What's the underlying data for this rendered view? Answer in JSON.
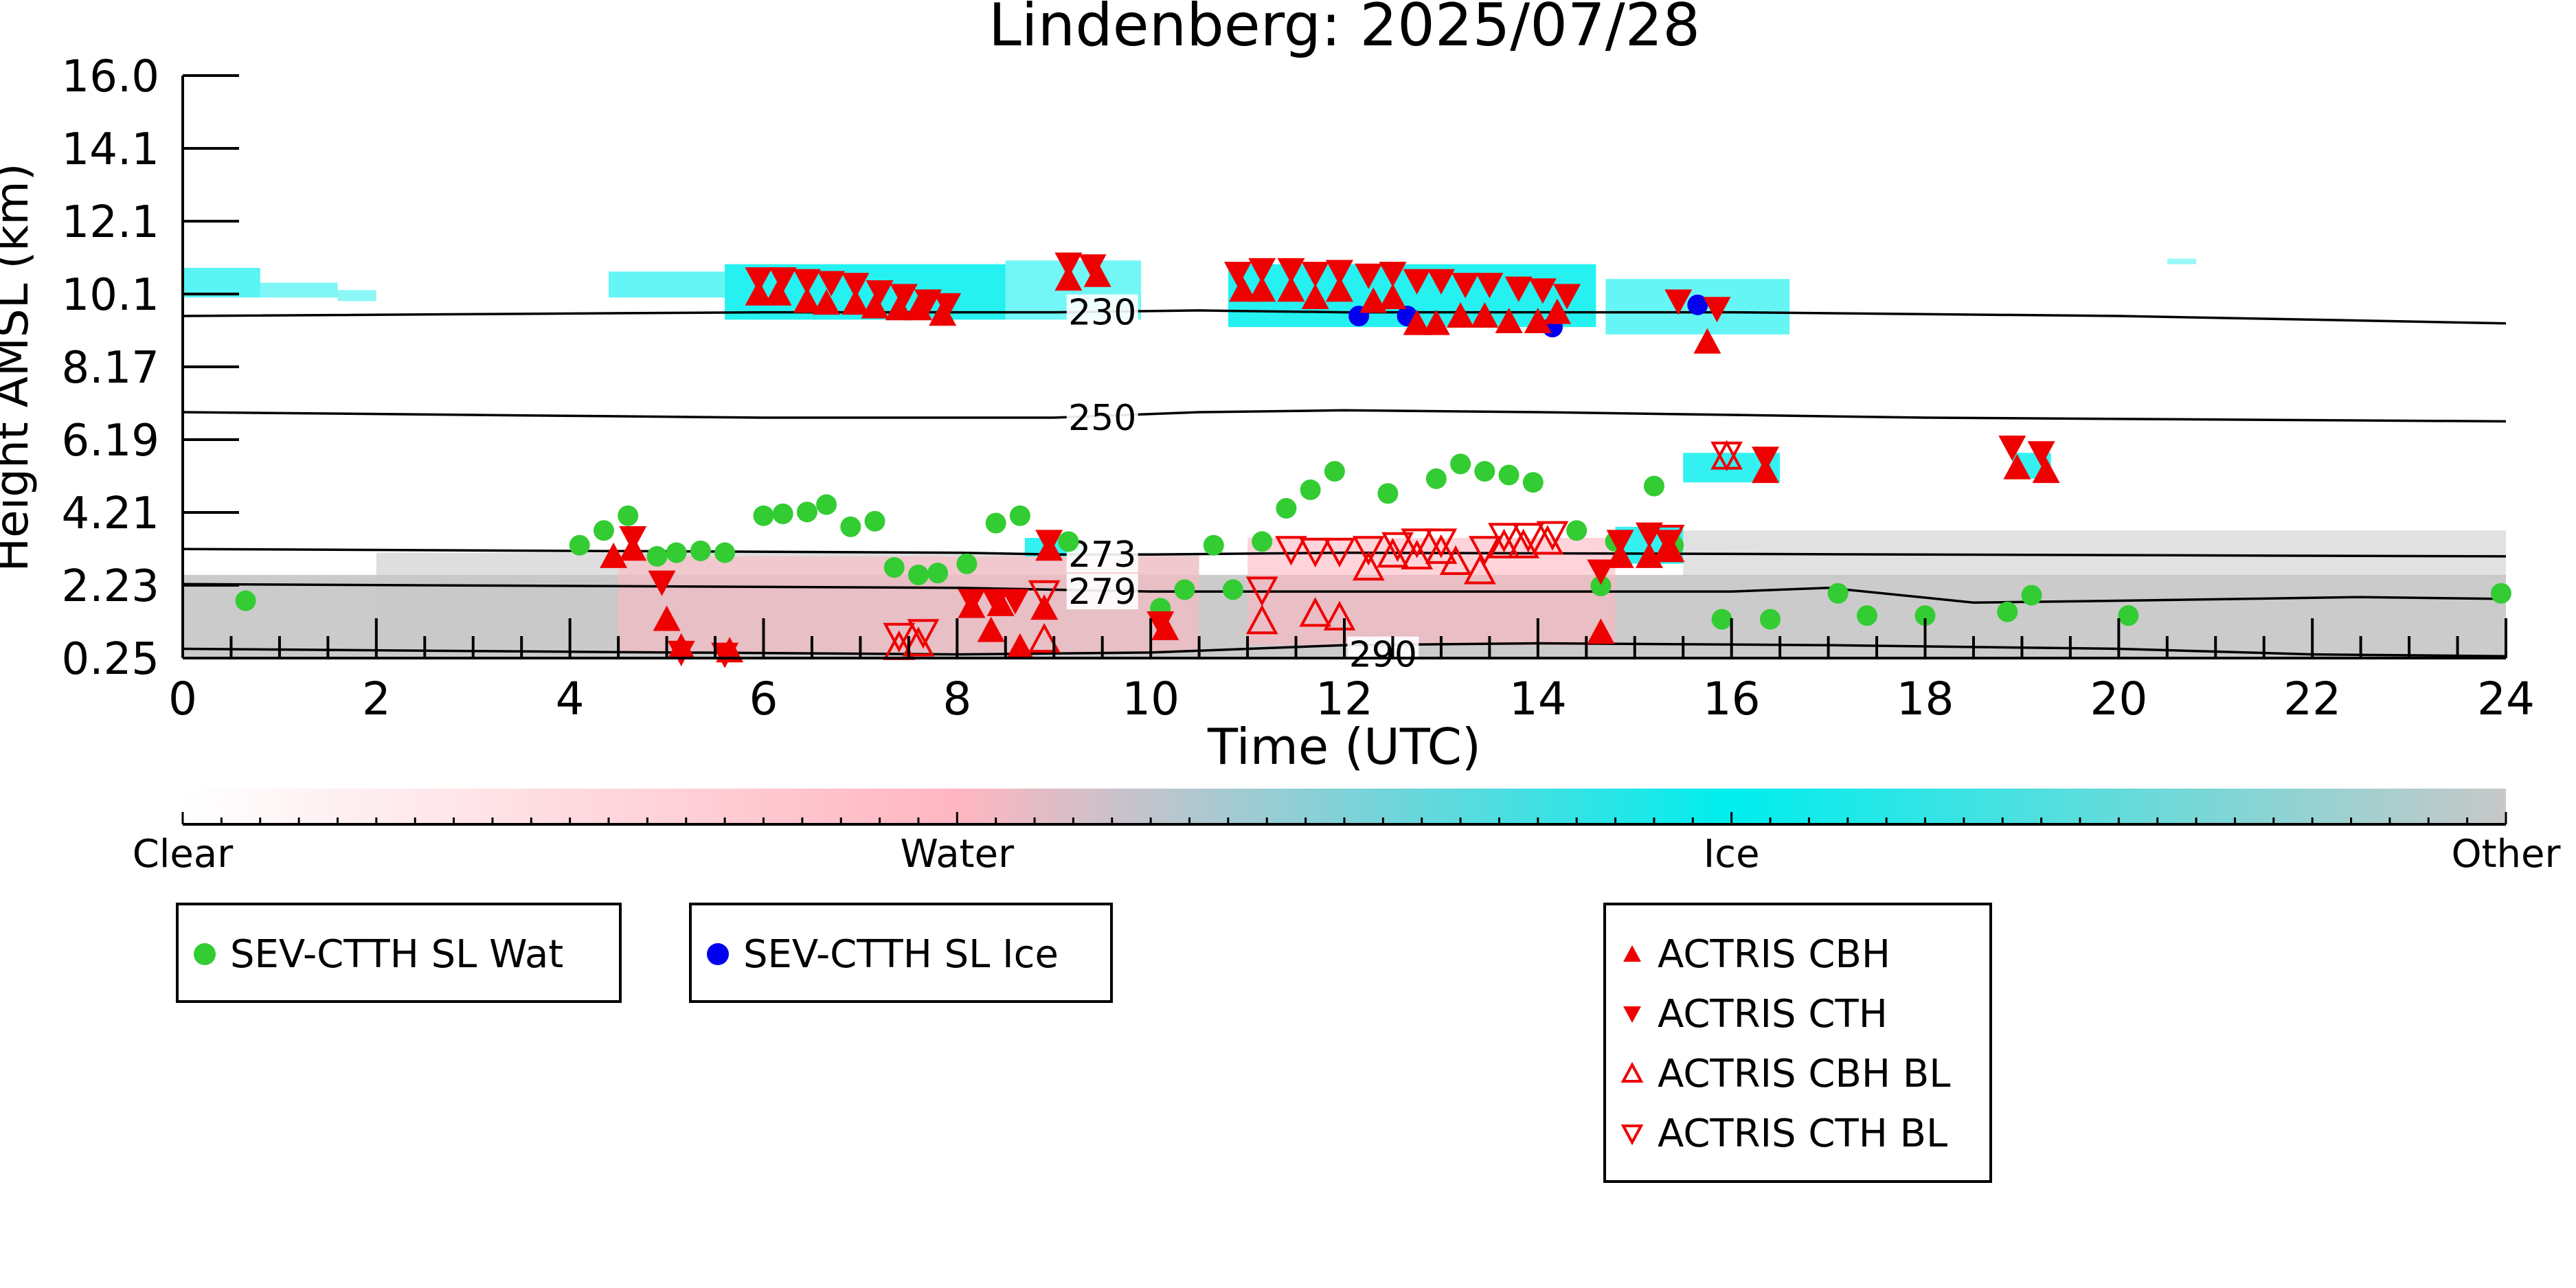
{
  "colors": {
    "background": "#ffffff",
    "axis": "#000000",
    "water_marker": "#33cc33",
    "ice_marker": "#0000ee",
    "actris_marker": "#ee0000",
    "ice_cloud": "#00eeee",
    "other_cloud": "#c8c8c8",
    "water_cloud": "#ffb6c1",
    "contour": "#000000"
  },
  "chart_data": {
    "type": "scatter",
    "title": "Lindenberg: 2025/07/28",
    "xlabel": "Time (UTC)",
    "ylabel": "Height AMSL (km)",
    "xlim": [
      0,
      24
    ],
    "ylim": [
      0.25,
      16.0
    ],
    "x_ticks": [
      "0",
      "2",
      "4",
      "6",
      "8",
      "10",
      "12",
      "14",
      "16",
      "18",
      "20",
      "22",
      "24"
    ],
    "y_ticks": [
      "0.25",
      "2.23",
      "4.21",
      "6.19",
      "8.17",
      "10.1",
      "12.1",
      "14.1",
      "16.0"
    ],
    "grid": false,
    "colorbar": {
      "categories": [
        "Clear",
        "Water",
        "Ice",
        "Other"
      ],
      "colors": [
        "#ffffff",
        "#ffb6c1",
        "#00eeee",
        "#c8c8c8"
      ]
    },
    "series": [
      {
        "name": "SEV-CTTH SL Wat",
        "marker": "filled-circle",
        "points": [
          [
            0.65,
            1.8
          ],
          [
            4.1,
            3.3
          ],
          [
            4.35,
            3.7
          ],
          [
            4.6,
            4.1
          ],
          [
            4.9,
            3.0
          ],
          [
            5.1,
            3.1
          ],
          [
            5.35,
            3.15
          ],
          [
            5.6,
            3.1
          ],
          [
            6.0,
            4.1
          ],
          [
            6.2,
            4.15
          ],
          [
            6.45,
            4.2
          ],
          [
            6.65,
            4.4
          ],
          [
            6.9,
            3.8
          ],
          [
            7.15,
            3.95
          ],
          [
            7.35,
            2.7
          ],
          [
            7.6,
            2.5
          ],
          [
            7.8,
            2.55
          ],
          [
            8.1,
            2.8
          ],
          [
            8.4,
            3.9
          ],
          [
            8.65,
            4.1
          ],
          [
            9.15,
            3.4
          ],
          [
            10.1,
            1.6
          ],
          [
            10.35,
            2.1
          ],
          [
            10.65,
            3.3
          ],
          [
            10.85,
            2.1
          ],
          [
            11.15,
            3.4
          ],
          [
            11.4,
            4.3
          ],
          [
            11.65,
            4.8
          ],
          [
            11.9,
            5.3
          ],
          [
            12.45,
            4.7
          ],
          [
            12.95,
            5.1
          ],
          [
            13.2,
            5.5
          ],
          [
            13.45,
            5.3
          ],
          [
            13.7,
            5.2
          ],
          [
            13.95,
            5.0
          ],
          [
            14.4,
            3.7
          ],
          [
            14.65,
            2.2
          ],
          [
            14.8,
            3.4
          ],
          [
            15.2,
            4.9
          ],
          [
            15.4,
            3.3
          ],
          [
            15.9,
            1.3
          ],
          [
            16.4,
            1.3
          ],
          [
            17.1,
            2.0
          ],
          [
            17.4,
            1.4
          ],
          [
            18.0,
            1.4
          ],
          [
            18.85,
            1.5
          ],
          [
            19.1,
            1.95
          ],
          [
            20.1,
            1.4
          ],
          [
            23.95,
            2.0
          ]
        ]
      },
      {
        "name": "SEV-CTTH SL Ice",
        "marker": "filled-circle",
        "points": [
          [
            12.15,
            9.5
          ],
          [
            12.65,
            9.5
          ],
          [
            14.15,
            9.2
          ],
          [
            15.65,
            9.8
          ]
        ]
      },
      {
        "name": "ACTRIS CBH",
        "marker": "filled-triangle-up",
        "points": [
          [
            4.45,
            3.0
          ],
          [
            4.65,
            3.2
          ],
          [
            5.0,
            1.3
          ],
          [
            5.15,
            0.55
          ],
          [
            5.65,
            0.45
          ],
          [
            5.95,
            10.1
          ],
          [
            6.15,
            10.1
          ],
          [
            6.45,
            9.9
          ],
          [
            6.65,
            9.85
          ],
          [
            6.95,
            9.85
          ],
          [
            7.15,
            9.75
          ],
          [
            7.4,
            9.7
          ],
          [
            7.6,
            9.7
          ],
          [
            7.85,
            9.55
          ],
          [
            8.15,
            1.65
          ],
          [
            8.35,
            1.0
          ],
          [
            8.45,
            1.7
          ],
          [
            8.65,
            0.55
          ],
          [
            8.9,
            1.6
          ],
          [
            8.95,
            3.2
          ],
          [
            9.15,
            10.5
          ],
          [
            9.45,
            10.6
          ],
          [
            10.15,
            1.05
          ],
          [
            10.95,
            10.2
          ],
          [
            11.15,
            10.2
          ],
          [
            11.45,
            10.2
          ],
          [
            11.7,
            10.0
          ],
          [
            11.95,
            10.2
          ],
          [
            12.3,
            9.9
          ],
          [
            12.5,
            10.0
          ],
          [
            12.75,
            9.3
          ],
          [
            12.95,
            9.3
          ],
          [
            13.2,
            9.5
          ],
          [
            13.45,
            9.5
          ],
          [
            13.7,
            9.35
          ],
          [
            14.0,
            9.35
          ],
          [
            14.2,
            9.6
          ],
          [
            14.65,
            0.95
          ],
          [
            14.85,
            3.0
          ],
          [
            15.15,
            3.0
          ],
          [
            15.35,
            3.2
          ],
          [
            15.75,
            8.8
          ],
          [
            16.35,
            5.3
          ],
          [
            18.95,
            5.4
          ],
          [
            19.25,
            5.3
          ]
        ]
      },
      {
        "name": "ACTRIS CTH",
        "marker": "filled-triangle-down",
        "points": [
          [
            4.65,
            3.5
          ],
          [
            4.95,
            2.3
          ],
          [
            5.15,
            0.4
          ],
          [
            5.6,
            0.35
          ],
          [
            5.95,
            10.5
          ],
          [
            6.2,
            10.5
          ],
          [
            6.45,
            10.45
          ],
          [
            6.7,
            10.4
          ],
          [
            6.95,
            10.35
          ],
          [
            7.2,
            10.15
          ],
          [
            7.45,
            10.05
          ],
          [
            7.7,
            9.9
          ],
          [
            7.9,
            9.8
          ],
          [
            8.15,
            1.8
          ],
          [
            8.4,
            1.8
          ],
          [
            8.6,
            1.8
          ],
          [
            8.95,
            3.4
          ],
          [
            9.15,
            10.9
          ],
          [
            9.4,
            10.85
          ],
          [
            10.1,
            1.2
          ],
          [
            10.9,
            10.65
          ],
          [
            11.15,
            10.75
          ],
          [
            11.45,
            10.75
          ],
          [
            11.7,
            10.65
          ],
          [
            11.95,
            10.7
          ],
          [
            12.25,
            10.6
          ],
          [
            12.5,
            10.65
          ],
          [
            12.75,
            10.45
          ],
          [
            13.0,
            10.45
          ],
          [
            13.25,
            10.35
          ],
          [
            13.5,
            10.35
          ],
          [
            13.8,
            10.25
          ],
          [
            14.05,
            10.2
          ],
          [
            14.3,
            10.05
          ],
          [
            14.65,
            2.6
          ],
          [
            14.85,
            3.4
          ],
          [
            15.15,
            3.6
          ],
          [
            15.35,
            3.4
          ],
          [
            15.45,
            9.9
          ],
          [
            15.85,
            9.7
          ],
          [
            16.35,
            5.65
          ],
          [
            18.9,
            5.95
          ],
          [
            19.2,
            5.8
          ]
        ]
      },
      {
        "name": "ACTRIS CBH BL",
        "marker": "open-triangle-up",
        "points": [
          [
            7.4,
            0.55
          ],
          [
            7.6,
            0.65
          ],
          [
            8.9,
            0.75
          ],
          [
            11.15,
            1.25
          ],
          [
            11.7,
            1.45
          ],
          [
            11.95,
            1.35
          ],
          [
            12.25,
            2.7
          ],
          [
            12.5,
            3.05
          ],
          [
            12.75,
            3.0
          ],
          [
            13.0,
            3.15
          ],
          [
            13.15,
            2.85
          ],
          [
            13.4,
            2.6
          ],
          [
            13.65,
            3.3
          ],
          [
            13.85,
            3.3
          ],
          [
            14.1,
            3.4
          ],
          [
            15.35,
            3.2
          ],
          [
            15.95,
            5.7
          ]
        ]
      },
      {
        "name": "ACTRIS CTH BL",
        "marker": "open-triangle-down",
        "points": [
          [
            7.4,
            0.85
          ],
          [
            7.65,
            0.95
          ],
          [
            8.9,
            2.0
          ],
          [
            11.15,
            2.1
          ],
          [
            11.45,
            3.2
          ],
          [
            11.7,
            3.15
          ],
          [
            11.95,
            3.15
          ],
          [
            12.25,
            3.2
          ],
          [
            12.55,
            3.3
          ],
          [
            12.75,
            3.4
          ],
          [
            13.0,
            3.4
          ],
          [
            13.45,
            3.2
          ],
          [
            13.65,
            3.55
          ],
          [
            13.9,
            3.55
          ],
          [
            14.15,
            3.6
          ],
          [
            15.35,
            3.5
          ],
          [
            15.95,
            5.75
          ]
        ]
      }
    ],
    "contours": [
      {
        "label": "230",
        "points": [
          [
            0,
            9.5
          ],
          [
            6,
            9.6
          ],
          [
            9,
            9.6
          ],
          [
            10.5,
            9.65
          ],
          [
            12,
            9.6
          ],
          [
            16,
            9.6
          ],
          [
            20,
            9.5
          ],
          [
            24,
            9.3
          ]
        ]
      },
      {
        "label": "250",
        "points": [
          [
            0,
            6.9
          ],
          [
            6,
            6.75
          ],
          [
            9,
            6.75
          ],
          [
            10.5,
            6.9
          ],
          [
            12,
            6.95
          ],
          [
            14,
            6.9
          ],
          [
            18,
            6.75
          ],
          [
            24,
            6.65
          ]
        ]
      },
      {
        "label": "273",
        "points": [
          [
            0,
            3.2
          ],
          [
            8,
            3.1
          ],
          [
            9,
            3.05
          ],
          [
            10,
            3.05
          ],
          [
            12,
            3.1
          ],
          [
            24,
            3.0
          ]
        ]
      },
      {
        "label": "279",
        "points": [
          [
            0,
            2.25
          ],
          [
            8,
            2.15
          ],
          [
            10,
            2.05
          ],
          [
            12,
            2.05
          ],
          [
            16,
            2.05
          ],
          [
            17,
            2.15
          ],
          [
            18.5,
            1.75
          ],
          [
            20,
            1.8
          ],
          [
            22.5,
            1.9
          ],
          [
            24,
            1.85
          ]
        ]
      },
      {
        "label": "290",
        "points": [
          [
            0,
            0.5
          ],
          [
            4,
            0.42
          ],
          [
            8,
            0.35
          ],
          [
            10,
            0.4
          ],
          [
            12,
            0.6
          ],
          [
            14,
            0.65
          ],
          [
            17,
            0.6
          ],
          [
            20,
            0.5
          ],
          [
            22,
            0.35
          ],
          [
            24,
            0.3
          ]
        ]
      }
    ],
    "legends": [
      {
        "entries": [
          "SEV-CTTH SL Wat"
        ]
      },
      {
        "entries": [
          "SEV-CTTH SL Ice"
        ]
      },
      {
        "entries": [
          "ACTRIS CBH",
          "ACTRIS CTH",
          "ACTRIS CBH BL",
          "ACTRIS CTH BL"
        ]
      }
    ]
  }
}
